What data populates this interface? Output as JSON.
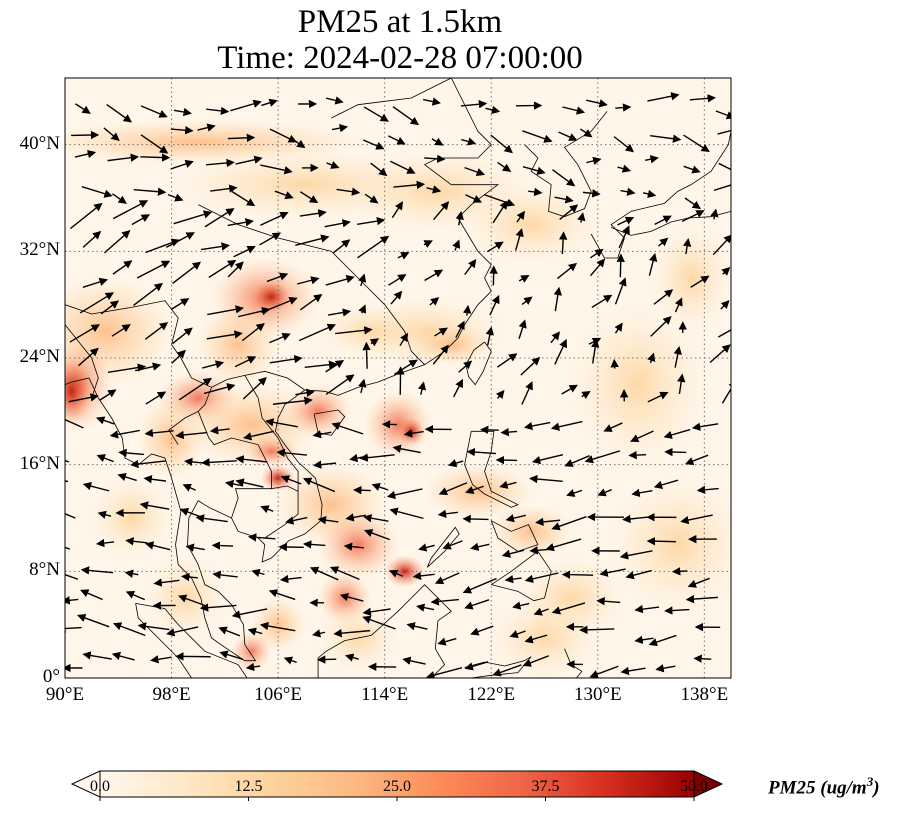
{
  "title": {
    "line1": "PM25 at 1.5km",
    "line2": "Time: 2024-02-28 07:00:00"
  },
  "map": {
    "projection": "PlateCarree",
    "extent": {
      "lon_min": 90,
      "lon_max": 140,
      "lat_min": 0,
      "lat_max": 45
    },
    "gridlines": "dotted",
    "lon_ticks": [
      {
        "value": 90,
        "label": "90°E"
      },
      {
        "value": 98,
        "label": "98°E"
      },
      {
        "value": 106,
        "label": "106°E"
      },
      {
        "value": 114,
        "label": "114°E"
      },
      {
        "value": 122,
        "label": "122°E"
      },
      {
        "value": 130,
        "label": "130°E"
      },
      {
        "value": 138,
        "label": "138°E"
      }
    ],
    "lat_ticks": [
      {
        "value": 0,
        "label": "0°"
      },
      {
        "value": 8,
        "label": "8°N"
      },
      {
        "value": 16,
        "label": "16°N"
      },
      {
        "value": 24,
        "label": "24°N"
      },
      {
        "value": 32,
        "label": "32°N"
      },
      {
        "value": 40,
        "label": "40°N"
      }
    ],
    "wind_vectors": "shown"
  },
  "colorbar": {
    "colormap": "OrRd",
    "min": 0.0,
    "max": 50.0,
    "extend": "both",
    "ticks": [
      {
        "value": 0.0,
        "label": "0.0"
      },
      {
        "value": 12.5,
        "label": "12.5"
      },
      {
        "value": 25.0,
        "label": "25.0"
      },
      {
        "value": 37.5,
        "label": "37.5"
      },
      {
        "value": 50.0,
        "label": "50.0"
      }
    ],
    "label_prefix": "PM25 (ug/m",
    "label_exponent": "3",
    "label_suffix": ")"
  },
  "colors": {
    "background": "#fff5e8",
    "low": "#fee3c0",
    "mid": "#fdb07a",
    "high": "#e3482a",
    "max": "#7f0000"
  }
}
